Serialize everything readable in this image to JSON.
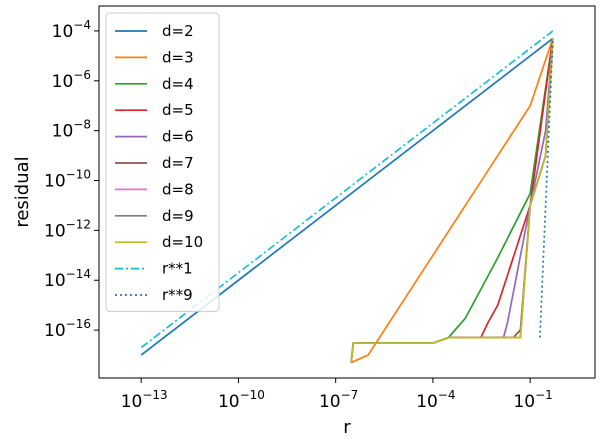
{
  "chart_data": {
    "type": "line",
    "xscale": "log",
    "yscale": "log",
    "xlabel": "r",
    "ylabel": "residual",
    "xlim": [
      5e-15,
      10
    ],
    "ylim": [
      1.2e-18,
      0.001
    ],
    "xticks": [
      {
        "base": "10",
        "exp": "−13",
        "value": 1e-13
      },
      {
        "base": "10",
        "exp": "−10",
        "value": 1e-10
      },
      {
        "base": "10",
        "exp": "−7",
        "value": 1e-07
      },
      {
        "base": "10",
        "exp": "−4",
        "value": 0.0001
      },
      {
        "base": "10",
        "exp": "−1",
        "value": 0.1
      }
    ],
    "yticks": [
      {
        "base": "10",
        "exp": "−4",
        "value": 0.0001
      },
      {
        "base": "10",
        "exp": "−6",
        "value": 1e-06
      },
      {
        "base": "10",
        "exp": "−8",
        "value": 1e-08
      },
      {
        "base": "10",
        "exp": "−10",
        "value": 1e-10
      },
      {
        "base": "10",
        "exp": "−12",
        "value": 1e-12
      },
      {
        "base": "10",
        "exp": "−14",
        "value": 1e-14
      },
      {
        "base": "10",
        "exp": "−16",
        "value": 1e-16
      }
    ],
    "legend_position": "upper-left",
    "series": [
      {
        "name": "d=2",
        "color": "#1f77b4",
        "dash": "solid",
        "x": [
          1e-13,
          0.5
        ],
        "y": [
          1e-17,
          5e-05
        ]
      },
      {
        "name": "d=3",
        "color": "#ff7f0e",
        "dash": "solid",
        "x": [
          3e-07,
          1e-06,
          1e-05,
          0.0001,
          0.001,
          0.01,
          0.1,
          0.5
        ],
        "y": [
          5e-18,
          1e-17,
          1e-15,
          1e-13,
          1e-11,
          1e-09,
          1e-07,
          5e-05
        ]
      },
      {
        "name": "d=4",
        "color": "#2ca02c",
        "dash": "solid",
        "x": [
          3e-07,
          3.5e-07,
          0.0001,
          0.0003,
          0.001,
          0.01,
          0.1,
          0.5
        ],
        "y": [
          5e-18,
          3e-17,
          3e-17,
          5e-17,
          3e-16,
          8e-14,
          3e-11,
          5e-05
        ]
      },
      {
        "name": "d=5",
        "color": "#d62728",
        "dash": "solid",
        "x": [
          3e-07,
          3.5e-07,
          0.0001,
          0.0003,
          0.003,
          0.005,
          0.01,
          0.1,
          0.5
        ],
        "y": [
          5e-18,
          3e-17,
          3e-17,
          5e-17,
          5e-17,
          2e-16,
          1e-15,
          1e-11,
          5e-05
        ]
      },
      {
        "name": "d=6",
        "color": "#9467bd",
        "dash": "solid",
        "x": [
          3e-07,
          3.5e-07,
          0.0001,
          0.0003,
          0.015,
          0.02,
          0.1,
          0.3,
          0.5
        ],
        "y": [
          5e-18,
          3e-17,
          3e-17,
          5e-17,
          5e-17,
          2e-16,
          1e-11,
          1e-08,
          5e-05
        ]
      },
      {
        "name": "d=7",
        "color": "#8c564b",
        "dash": "solid",
        "x": [
          3e-07,
          3.5e-07,
          0.0001,
          0.0003,
          0.03,
          0.05,
          0.1,
          0.3,
          0.5
        ],
        "y": [
          5e-18,
          3e-17,
          3e-17,
          5e-17,
          5e-17,
          1e-16,
          1e-11,
          1e-09,
          5e-05
        ]
      },
      {
        "name": "d=8",
        "color": "#e377c2",
        "dash": "solid",
        "x": [
          3e-07,
          3.5e-07,
          0.0001,
          0.0003,
          0.05,
          0.1,
          0.3,
          0.5
        ],
        "y": [
          5e-18,
          3e-17,
          3e-17,
          5e-17,
          5e-17,
          1e-11,
          1e-09,
          5e-05
        ]
      },
      {
        "name": "d=9",
        "color": "#7f7f7f",
        "dash": "solid",
        "x": [
          3e-07,
          3.5e-07,
          0.0001,
          0.0003,
          0.05,
          0.1,
          0.3,
          0.5
        ],
        "y": [
          5e-18,
          3e-17,
          3e-17,
          5e-17,
          5e-17,
          1e-11,
          1e-09,
          5e-05
        ]
      },
      {
        "name": "d=10",
        "color": "#bcbd22",
        "dash": "solid",
        "x": [
          3e-07,
          3.5e-07,
          0.0001,
          0.0003,
          0.05,
          0.1,
          0.3,
          0.5
        ],
        "y": [
          5e-18,
          3e-17,
          3e-17,
          5e-17,
          5e-17,
          1e-11,
          1e-09,
          5e-05
        ]
      },
      {
        "name": "r**1",
        "color": "#17becf",
        "dash": "dashdot",
        "x": [
          1e-13,
          0.5
        ],
        "y": [
          2e-17,
          0.0001
        ]
      },
      {
        "name": "r**9",
        "color": "#1f77b4",
        "dash": "dotted",
        "x": [
          0.2,
          0.5
        ],
        "y": [
          5e-17,
          5e-05
        ]
      }
    ]
  }
}
